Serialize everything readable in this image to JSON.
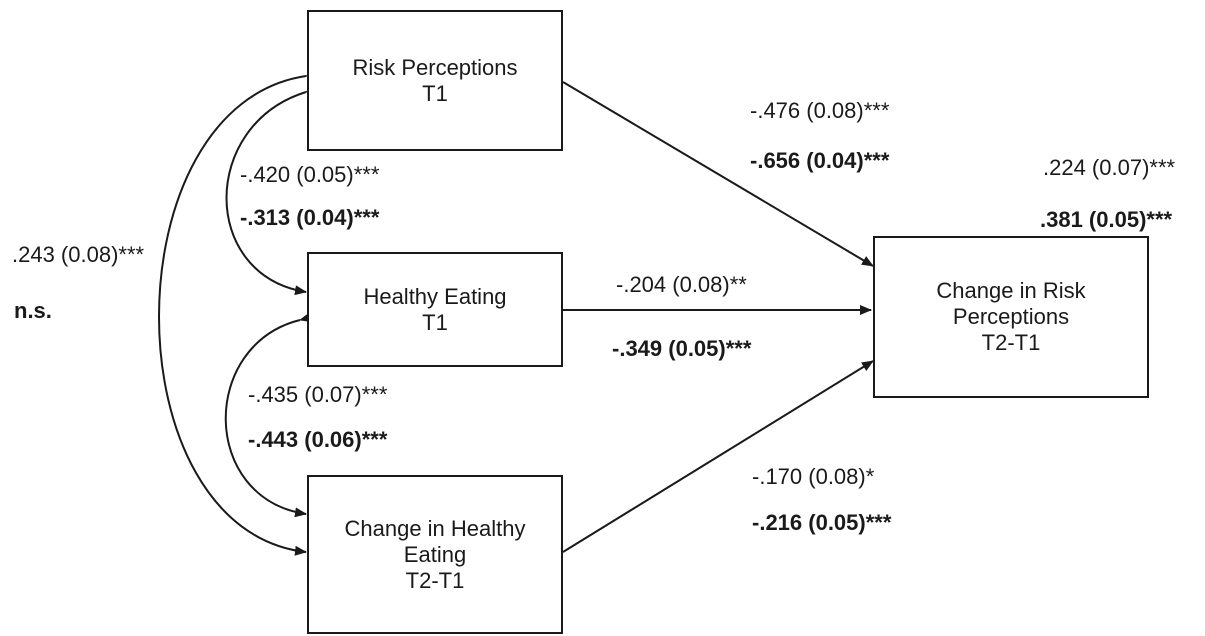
{
  "nodes": {
    "risk_t1": [
      "Risk Perceptions",
      "T1"
    ],
    "eating_t1": [
      "Healthy Eating",
      "T1"
    ],
    "change_eating": [
      "Change in Healthy",
      "Eating",
      "T2-T1"
    ],
    "change_risk": [
      "Change in Risk",
      "Perceptions",
      "T2-T1"
    ]
  },
  "paths": {
    "risk_to_change": {
      "est1": "-.476 (0.08)***",
      "est2": "-.656 (0.04)***"
    },
    "eating_to_change": {
      "est1": "-.204 (0.08)**",
      "est2": "-.349 (0.05)***"
    },
    "change_eating_to_change_risk": {
      "est1": "-.170 (0.08)*",
      "est2": "-.216 (0.05)***"
    },
    "risk_eating_cov": {
      "est1": "-.420 (0.05)***",
      "est2": "-.313 (0.04)***"
    },
    "eating_change_eating_cov": {
      "est1": "-.435 (0.07)***",
      "est2": "-.443 (0.06)***"
    },
    "risk_change_eating_cov": {
      "est1": ".243 (0.08)***",
      "est2": "n.s."
    },
    "outcome_residual": {
      "est1": ".224 (0.07)***",
      "est2": ".381 (0.05)***"
    }
  }
}
